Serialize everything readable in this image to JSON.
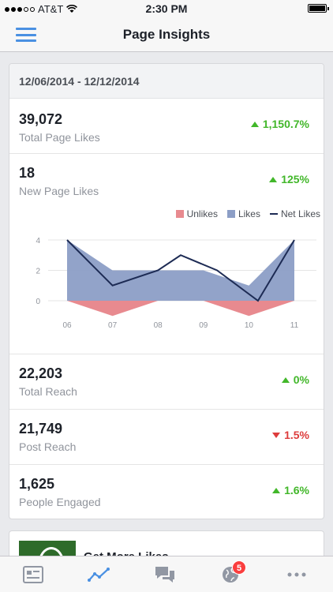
{
  "status_bar": {
    "carrier": "AT&T",
    "time": "2:30 PM"
  },
  "nav": {
    "title": "Page Insights",
    "menu_icon": "hamburger-menu-icon"
  },
  "date_range": "12/06/2014 - 12/12/2014",
  "metrics": [
    {
      "value": "39,072",
      "label": "Total Page Likes",
      "change": "1,150.7%",
      "direction": "up"
    },
    {
      "value": "18",
      "label": "New Page Likes",
      "change": "125%",
      "direction": "up"
    },
    {
      "value": "22,203",
      "label": "Total Reach",
      "change": "0%",
      "direction": "up"
    },
    {
      "value": "21,749",
      "label": "Post Reach",
      "change": "1.5%",
      "direction": "down"
    },
    {
      "value": "1,625",
      "label": "People Engaged",
      "change": "1.6%",
      "direction": "up"
    }
  ],
  "colors": {
    "up": "#42b72a",
    "down": "#dd3c3c",
    "likes": "#8c9ec6",
    "unlikes": "#e88a8f",
    "net_likes": "#1d2b54"
  },
  "chart_data": {
    "type": "area",
    "x": [
      "06",
      "07",
      "08",
      "09",
      "10",
      "11"
    ],
    "x_positions": [
      6,
      7,
      8,
      9,
      10,
      11
    ],
    "series": [
      {
        "name": "Likes",
        "x": [
          6,
          7,
          8,
          9,
          10,
          11
        ],
        "values": [
          4,
          2,
          2,
          2,
          1,
          4
        ]
      },
      {
        "name": "Unlikes",
        "x": [
          6,
          7,
          8,
          9,
          10,
          11
        ],
        "values": [
          0,
          -1,
          0,
          0,
          -1,
          0
        ]
      },
      {
        "name": "Net Likes",
        "x": [
          6,
          7,
          8,
          8.5,
          9.3,
          10.2,
          11
        ],
        "values": [
          4,
          1,
          2,
          3,
          2,
          0,
          4
        ]
      }
    ],
    "yticks": [
      0,
      2,
      4
    ],
    "ylim": [
      -1,
      4
    ],
    "legend": [
      "Unlikes",
      "Likes",
      "Net Likes"
    ],
    "legend_position": "top-right",
    "grid": true
  },
  "promo": {
    "title": "Get More Likes"
  },
  "tab_bar": {
    "items": [
      {
        "name": "news-feed-icon"
      },
      {
        "name": "insights-icon"
      },
      {
        "name": "messages-icon"
      },
      {
        "name": "notifications-globe-icon",
        "badge": "5"
      },
      {
        "name": "more-icon"
      }
    ]
  }
}
